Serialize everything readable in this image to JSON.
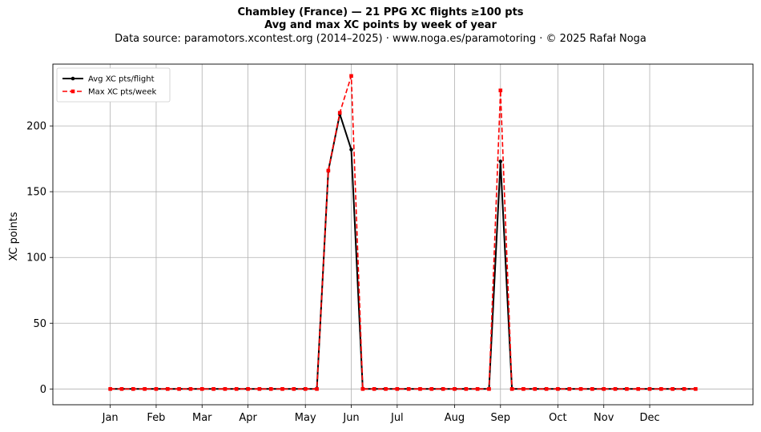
{
  "header": {
    "title": "Chambley (France)  —  21 PPG XC flights ≥100 pts",
    "subtitle": "Avg and max XC points by week of year",
    "source": "Data source: paramotors.xcontest.org (2014–2025)  ·  www.noga.es/paramotoring  ·  © 2025 Rafał Noga"
  },
  "chart_data": {
    "type": "line",
    "title": "Chambley (France)  —  21 PPG XC flights ≥100 pts",
    "subtitle": "Avg and max XC points by week of year",
    "xlabel": "",
    "ylabel": "XC points",
    "xlim": [
      -4,
      57
    ],
    "ylim": [
      -12,
      247
    ],
    "grid": true,
    "legend_position": "top-left",
    "yticks": [
      0,
      50,
      100,
      150,
      200
    ],
    "xticks": [
      {
        "label": "Jan",
        "week": 1
      },
      {
        "label": "Feb",
        "week": 5
      },
      {
        "label": "Mar",
        "week": 9
      },
      {
        "label": "Apr",
        "week": 13
      },
      {
        "label": "May",
        "week": 18
      },
      {
        "label": "Jun",
        "week": 22
      },
      {
        "label": "Jul",
        "week": 26
      },
      {
        "label": "Aug",
        "week": 31
      },
      {
        "label": "Sep",
        "week": 35
      },
      {
        "label": "Oct",
        "week": 40
      },
      {
        "label": "Nov",
        "week": 44
      },
      {
        "label": "Dec",
        "week": 48
      }
    ],
    "x": [
      1,
      2,
      3,
      4,
      5,
      6,
      7,
      8,
      9,
      10,
      11,
      12,
      13,
      14,
      15,
      16,
      17,
      18,
      19,
      20,
      21,
      22,
      23,
      24,
      25,
      26,
      27,
      28,
      29,
      30,
      31,
      32,
      33,
      34,
      35,
      36,
      37,
      38,
      39,
      40,
      41,
      42,
      43,
      44,
      45,
      46,
      47,
      48,
      49,
      50,
      51,
      52
    ],
    "series": [
      {
        "name": "Avg XC pts/flight",
        "color": "#000000",
        "style": "solid",
        "marker": "circle",
        "values": [
          0,
          0,
          0,
          0,
          0,
          0,
          0,
          0,
          0,
          0,
          0,
          0,
          0,
          0,
          0,
          0,
          0,
          0,
          0,
          166,
          209,
          182,
          0,
          0,
          0,
          0,
          0,
          0,
          0,
          0,
          0,
          0,
          0,
          0,
          173,
          0,
          0,
          0,
          0,
          0,
          0,
          0,
          0,
          0,
          0,
          0,
          0,
          0,
          0,
          0,
          0,
          0
        ]
      },
      {
        "name": "Max XC pts/week",
        "color": "#ff0000",
        "style": "dashed",
        "marker": "square",
        "values": [
          0,
          0,
          0,
          0,
          0,
          0,
          0,
          0,
          0,
          0,
          0,
          0,
          0,
          0,
          0,
          0,
          0,
          0,
          0,
          166,
          210,
          238,
          0,
          0,
          0,
          0,
          0,
          0,
          0,
          0,
          0,
          0,
          0,
          0,
          227,
          0,
          0,
          0,
          0,
          0,
          0,
          0,
          0,
          0,
          0,
          0,
          0,
          0,
          0,
          0,
          0,
          0
        ]
      }
    ]
  }
}
